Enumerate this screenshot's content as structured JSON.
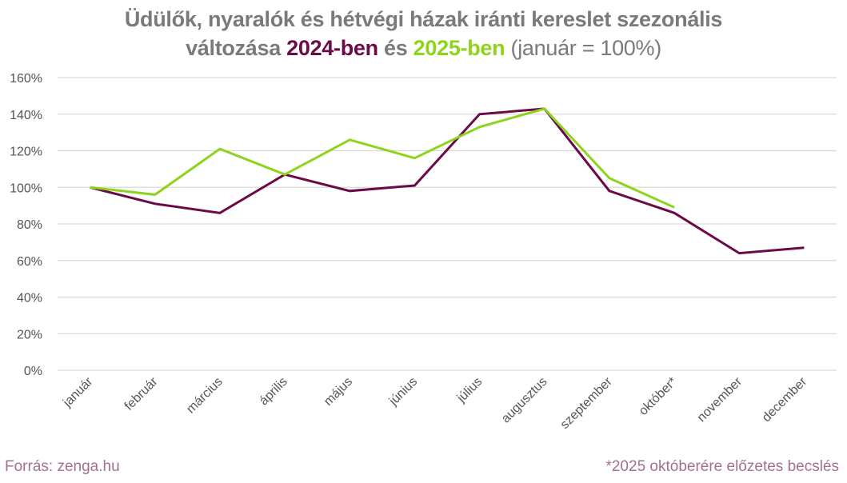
{
  "title": {
    "line1": "Üdülők, nyaralók és hétvégi házak iránti kereslet szezonális",
    "line2_prefix": "változása ",
    "line2_year1": "2024-ben",
    "line2_mid": " és ",
    "line2_year2": "2025-ben",
    "line2_suffix": " (január = 100%)"
  },
  "footer": {
    "source": "Forrás: zenga.hu",
    "note": "*2025 októberére előzetes becslés"
  },
  "colors": {
    "series_2024": "#6b0a47",
    "series_2025": "#8fd41c",
    "grid": "#d9d9d9",
    "title": "#7a7a7a",
    "footer": "#a1718f"
  },
  "chart_data": {
    "type": "line",
    "title": "Üdülők, nyaralók és hétvégi házak iránti kereslet szezonális változása 2024-ben és 2025-ben (január = 100%)",
    "xlabel": "",
    "ylabel": "",
    "categories": [
      "január",
      "február",
      "március",
      "április",
      "május",
      "június",
      "július",
      "augusztus",
      "szeptember",
      "október*",
      "november",
      "december"
    ],
    "series": [
      {
        "name": "2024",
        "color": "#6b0a47",
        "values": [
          100,
          91,
          86,
          107,
          98,
          101,
          140,
          143,
          98,
          86,
          64,
          67
        ]
      },
      {
        "name": "2025",
        "color": "#8fd41c",
        "values": [
          100,
          96,
          121,
          107,
          126,
          116,
          133,
          143,
          105,
          89,
          null,
          null
        ]
      }
    ],
    "yticks": [
      "0%",
      "20%",
      "40%",
      "60%",
      "80%",
      "100%",
      "120%",
      "140%",
      "160%"
    ],
    "ylim": [
      0,
      160
    ],
    "grid": true,
    "legend": "none (years colored in title)",
    "annotations": [
      "*2025 októberére előzetes becslés",
      "Forrás: zenga.hu"
    ]
  }
}
